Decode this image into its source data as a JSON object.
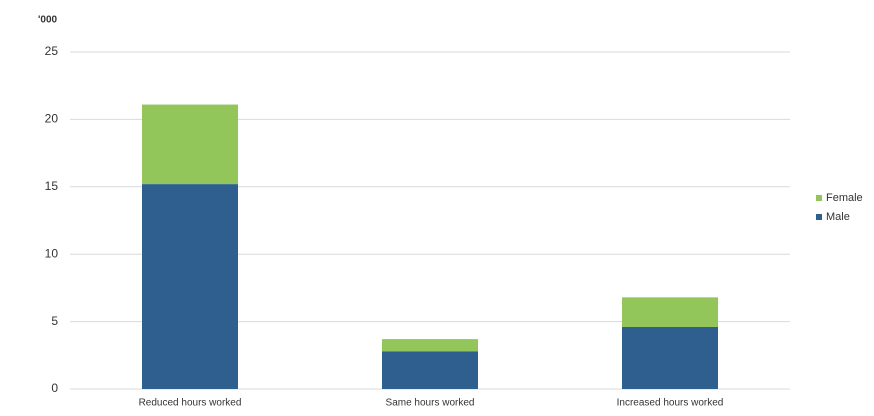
{
  "chart_data": {
    "type": "stacked_bar",
    "y_axis_label": "'000",
    "categories": [
      "Reduced hours worked",
      "Same hours worked",
      "Increased hours worked"
    ],
    "series": [
      {
        "name": "Male",
        "color": "#2e5f8f",
        "values": [
          15.2,
          2.8,
          4.6
        ]
      },
      {
        "name": "Female",
        "color": "#92c55a",
        "values": [
          5.9,
          0.9,
          2.2
        ]
      }
    ],
    "ylim": [
      0,
      25
    ],
    "yticks": [
      0,
      5,
      10,
      15,
      20,
      25
    ],
    "grid": true,
    "legend": "right"
  }
}
